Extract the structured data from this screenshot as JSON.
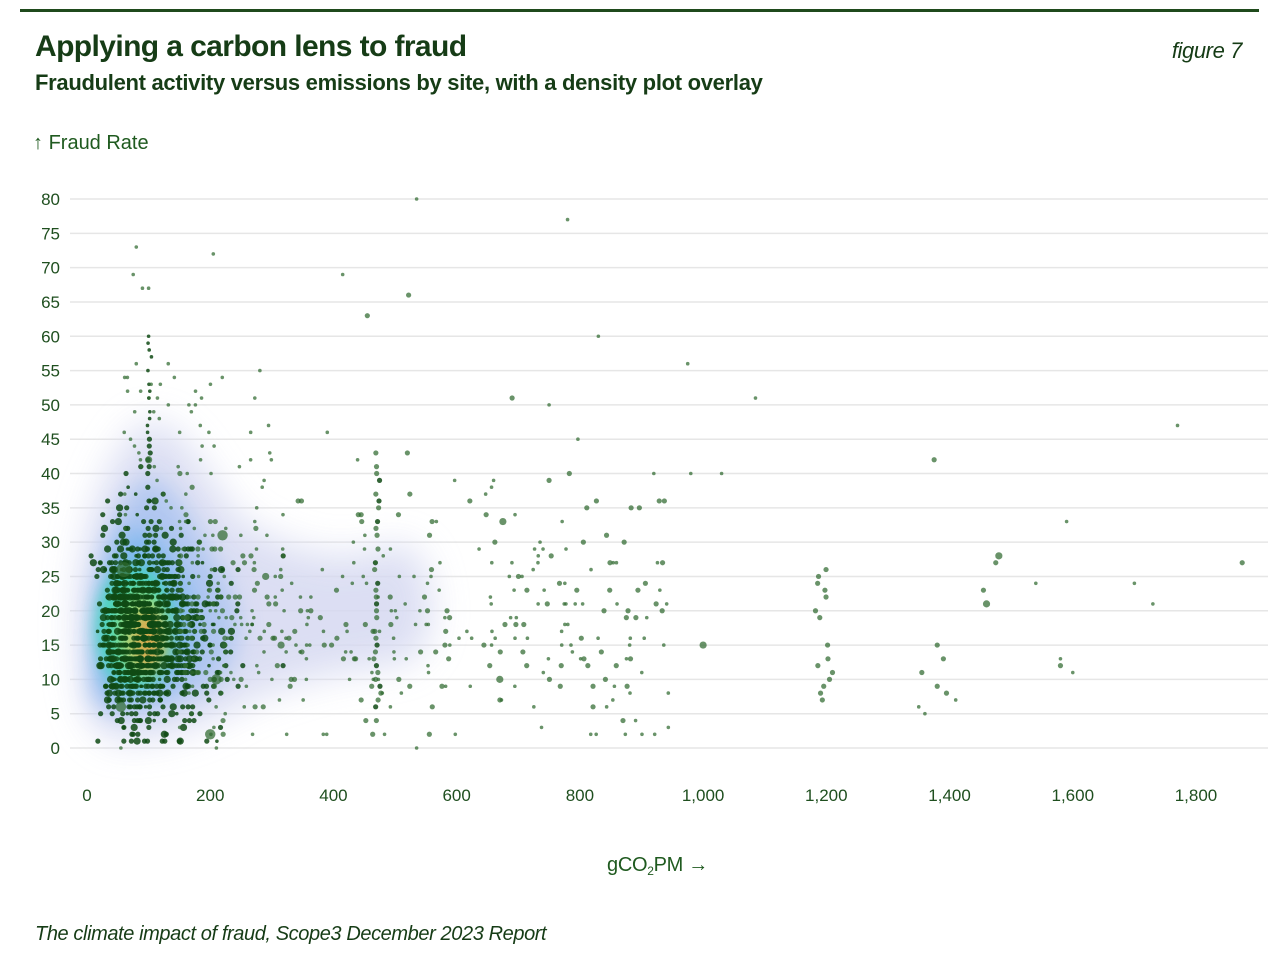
{
  "header": {
    "title": "Applying a carbon lens to fraud",
    "subtitle": "Fraudulent activity versus emissions by site, with a density plot overlay",
    "figure_label": "figure 7"
  },
  "axes": {
    "y_title_arrow": "↑",
    "y_title": "Fraud Rate",
    "x_title_prefix": "gCO",
    "x_title_sub": "2",
    "x_title_suffix": "PM",
    "x_title_arrow": "→"
  },
  "footer": {
    "source": "The climate impact of fraud, Scope3 December 2023 Report"
  },
  "colors": {
    "brand_dark_green": "#163c16",
    "rule": "#1f4a1c",
    "point": "#2f6a2f",
    "point_dense": "#0f4a14",
    "grid": "#e6e6e6",
    "density_outer": "#d9dcf2",
    "density_mid": "#8fb8ee",
    "density_inner": "#3fd8b0",
    "density_core": "#e0a24a"
  },
  "chart_data": {
    "type": "scatter",
    "title": "Applying a carbon lens to fraud",
    "subtitle": "Fraudulent activity versus emissions by site, with a density plot overlay",
    "xlabel": "gCO2PM",
    "ylabel": "Fraud Rate",
    "xlim": [
      0,
      1900
    ],
    "ylim": [
      0,
      80
    ],
    "x_ticks": [
      0,
      200,
      400,
      600,
      800,
      1000,
      1200,
      1400,
      1600,
      1800
    ],
    "x_tick_labels": [
      "0",
      "200",
      "400",
      "600",
      "800",
      "1,000",
      "1,200",
      "1,400",
      "1,600",
      "1,800"
    ],
    "y_ticks": [
      0,
      5,
      10,
      15,
      20,
      25,
      30,
      35,
      40,
      45,
      50,
      55,
      60,
      65,
      70,
      75,
      80
    ],
    "y_tick_labels": [
      "0",
      "5",
      "10",
      "15",
      "20",
      "25",
      "30",
      "35",
      "40",
      "45",
      "50",
      "55",
      "60",
      "65",
      "70",
      "75",
      "80"
    ],
    "grid": "horizontal",
    "overlay": "2D kernel density estimate (viridis-like: lavender outer, blue, teal, yellow/orange core)",
    "density_peak": {
      "x": 100,
      "y": 16
    },
    "density_secondary_lobe": {
      "x": 480,
      "y": 20
    },
    "note": "Point size encodes site volume; dense cluster at x 40-250, y 5-35 not fully enumerated",
    "points": [
      {
        "x": 535,
        "y": 80,
        "s": 1
      },
      {
        "x": 780,
        "y": 77,
        "s": 1
      },
      {
        "x": 80,
        "y": 73,
        "s": 1
      },
      {
        "x": 205,
        "y": 72,
        "s": 1
      },
      {
        "x": 75,
        "y": 69,
        "s": 1
      },
      {
        "x": 415,
        "y": 69,
        "s": 1
      },
      {
        "x": 90,
        "y": 67,
        "s": 1
      },
      {
        "x": 100,
        "y": 67,
        "s": 1
      },
      {
        "x": 522,
        "y": 66,
        "s": 2
      },
      {
        "x": 455,
        "y": 63,
        "s": 2
      },
      {
        "x": 830,
        "y": 60,
        "s": 1
      },
      {
        "x": 975,
        "y": 56,
        "s": 1
      },
      {
        "x": 690,
        "y": 51,
        "s": 2
      },
      {
        "x": 1085,
        "y": 51,
        "s": 1
      },
      {
        "x": 750,
        "y": 50,
        "s": 1
      },
      {
        "x": 1770,
        "y": 47,
        "s": 1
      },
      {
        "x": 390,
        "y": 46,
        "s": 1
      },
      {
        "x": 520,
        "y": 43,
        "s": 2
      },
      {
        "x": 1375,
        "y": 42,
        "s": 2
      },
      {
        "x": 100,
        "y": 42,
        "s": 3
      },
      {
        "x": 920,
        "y": 40,
        "s": 1
      },
      {
        "x": 980,
        "y": 40,
        "s": 1
      },
      {
        "x": 1030,
        "y": 40,
        "s": 1
      },
      {
        "x": 445,
        "y": 34,
        "s": 2
      },
      {
        "x": 675,
        "y": 33,
        "s": 3
      },
      {
        "x": 1590,
        "y": 33,
        "s": 1
      },
      {
        "x": 1480,
        "y": 28,
        "s": 3
      },
      {
        "x": 1875,
        "y": 27,
        "s": 2
      },
      {
        "x": 1475,
        "y": 27,
        "s": 2
      },
      {
        "x": 1540,
        "y": 24,
        "s": 1
      },
      {
        "x": 1700,
        "y": 24,
        "s": 1
      },
      {
        "x": 1455,
        "y": 23,
        "s": 2
      },
      {
        "x": 1460,
        "y": 21,
        "s": 3
      },
      {
        "x": 1730,
        "y": 21,
        "s": 1
      },
      {
        "x": 1000,
        "y": 15,
        "s": 3
      },
      {
        "x": 1580,
        "y": 13,
        "s": 1
      },
      {
        "x": 1580,
        "y": 12,
        "s": 2
      },
      {
        "x": 1600,
        "y": 11,
        "s": 1
      },
      {
        "x": 1380,
        "y": 15,
        "s": 2
      },
      {
        "x": 1390,
        "y": 13,
        "s": 2
      },
      {
        "x": 1380,
        "y": 9,
        "s": 2
      },
      {
        "x": 1395,
        "y": 8,
        "s": 2
      },
      {
        "x": 1410,
        "y": 7,
        "s": 1
      },
      {
        "x": 1355,
        "y": 11,
        "s": 2
      },
      {
        "x": 1350,
        "y": 6,
        "s": 1
      },
      {
        "x": 1360,
        "y": 5,
        "s": 1
      },
      {
        "x": 670,
        "y": 10,
        "s": 3
      },
      {
        "x": 60,
        "y": 26,
        "s": 5
      },
      {
        "x": 55,
        "y": 6,
        "s": 4
      },
      {
        "x": 200,
        "y": 2,
        "s": 4
      },
      {
        "x": 220,
        "y": 31,
        "s": 4
      },
      {
        "x": 210,
        "y": 10,
        "s": 4
      },
      {
        "x": 315,
        "y": 15,
        "s": 3
      },
      {
        "x": 290,
        "y": 25,
        "s": 3
      },
      {
        "x": 55,
        "y": 0,
        "s": 1
      },
      {
        "x": 210,
        "y": 0,
        "s": 1
      },
      {
        "x": 535,
        "y": 0,
        "s": 1
      }
    ]
  }
}
